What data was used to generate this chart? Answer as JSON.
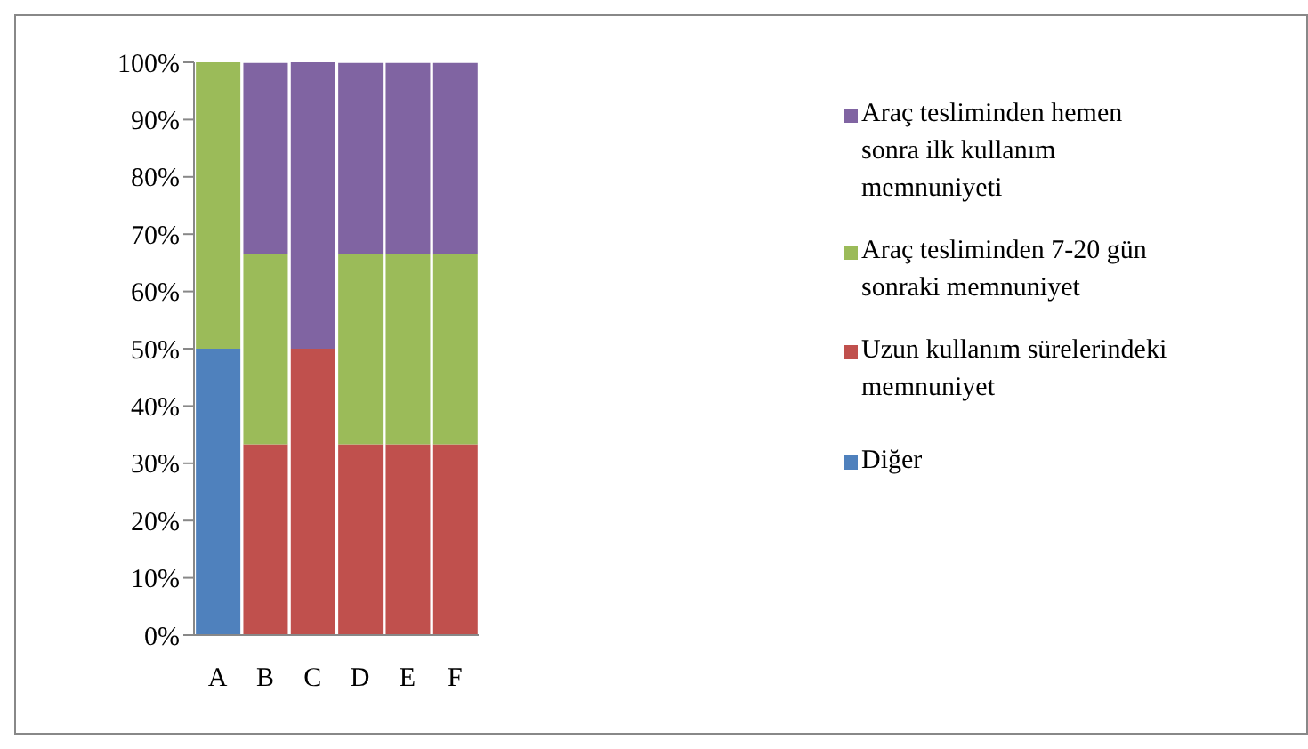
{
  "chart_data": {
    "type": "bar",
    "stacked": true,
    "categories": [
      "A",
      "B",
      "C",
      "D",
      "E",
      "F"
    ],
    "series": [
      {
        "name": "Diğer",
        "color": "#4f81bd",
        "values": [
          50,
          0,
          0,
          0,
          0,
          0
        ]
      },
      {
        "name": "Uzun kullanım sürelerindeki memnuniyet",
        "color": "#c0504d",
        "values": [
          0,
          33.3,
          50,
          33.3,
          33.3,
          33.3
        ]
      },
      {
        "name": "Araç tesliminden 7-20 gün sonraki memnuniyet",
        "color": "#9bbb59",
        "values": [
          50,
          33.3,
          0,
          33.3,
          33.3,
          33.3
        ]
      },
      {
        "name": "Araç tesliminden hemen sonra ilk kullanım memnuniyeti",
        "color": "#8064a2",
        "values": [
          0,
          33.3,
          50,
          33.3,
          33.3,
          33.3
        ]
      }
    ],
    "ylim": [
      0,
      100
    ],
    "yticks": [
      {
        "value": 0,
        "label": "0%"
      },
      {
        "value": 10,
        "label": "10%"
      },
      {
        "value": 20,
        "label": "20%"
      },
      {
        "value": 30,
        "label": "30%"
      },
      {
        "value": 40,
        "label": "40%"
      },
      {
        "value": 50,
        "label": "50%"
      },
      {
        "value": 60,
        "label": "60%"
      },
      {
        "value": 70,
        "label": "70%"
      },
      {
        "value": 80,
        "label": "80%"
      },
      {
        "value": 90,
        "label": "90%"
      },
      {
        "value": 100,
        "label": "100%"
      }
    ],
    "grid": false,
    "legend": "right"
  }
}
